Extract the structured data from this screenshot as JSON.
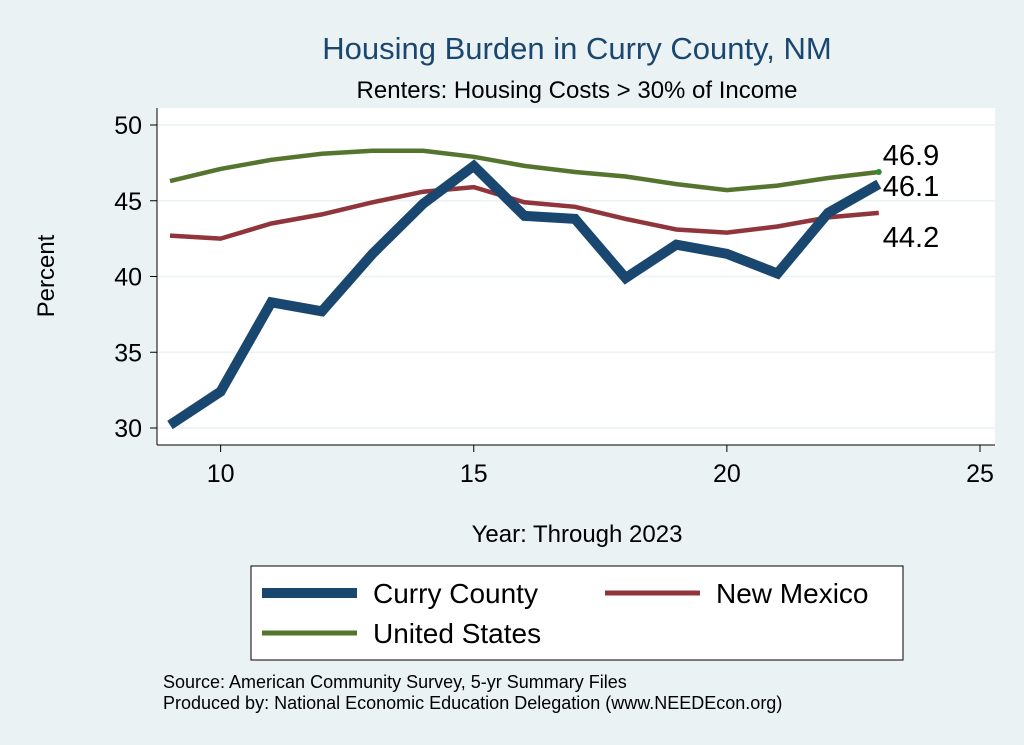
{
  "chart_data": {
    "type": "line",
    "title": "Housing Burden in Curry County, NM",
    "subtitle": "Renters: Housing Costs > 30% of Income",
    "xlabel": "Year: Through 2023",
    "ylabel": "Percent",
    "xlim": [
      9,
      25
    ],
    "ylim": [
      29.5,
      50
    ],
    "xticks": [
      10,
      15,
      20,
      25
    ],
    "yticks": [
      30,
      35,
      40,
      45,
      50
    ],
    "x": [
      9,
      10,
      11,
      12,
      13,
      14,
      15,
      16,
      17,
      18,
      19,
      20,
      21,
      22,
      23
    ],
    "series": [
      {
        "name": "Curry County",
        "color": "#1a476f",
        "values": [
          30.2,
          32.4,
          38.3,
          37.7,
          41.5,
          44.8,
          47.3,
          44.0,
          43.8,
          39.9,
          42.1,
          41.5,
          40.2,
          44.2,
          46.1
        ],
        "end_label": "46.1"
      },
      {
        "name": "New Mexico",
        "color": "#90353b",
        "values": [
          42.7,
          42.5,
          43.5,
          44.1,
          44.9,
          45.6,
          45.9,
          44.9,
          44.6,
          43.8,
          43.1,
          42.9,
          43.3,
          43.9,
          44.2
        ],
        "end_label": "44.2"
      },
      {
        "name": "United States",
        "color": "#55752f",
        "values": [
          46.3,
          47.1,
          47.7,
          48.1,
          48.3,
          48.3,
          47.9,
          47.3,
          46.9,
          46.6,
          46.1,
          45.7,
          46.0,
          46.5,
          46.9
        ],
        "end_label": "46.9"
      }
    ],
    "legend": [
      "Curry County",
      "New Mexico",
      "United States"
    ],
    "source_lines": [
      "Source: American Community Survey, 5-yr Summary Files",
      "Produced by: National Economic Education Delegation (www.NEEDEcon.org)"
    ]
  }
}
